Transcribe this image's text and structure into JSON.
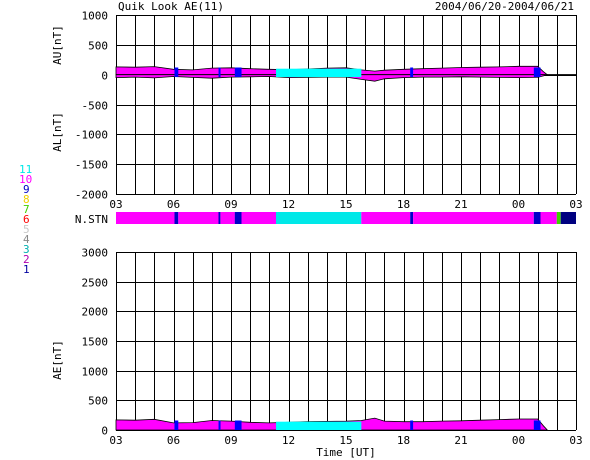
{
  "header": {
    "title": "Quik Look AE(11)",
    "period": "2004/06/20-2004/06/21"
  },
  "colors": {
    "magenta": "#ff00ff",
    "cyan": "#00ffff",
    "blue": "#0000ff",
    "navy": "#000080",
    "grid": "#000000"
  },
  "legend": [
    {
      "label": "11",
      "color": "#00e8e8"
    },
    {
      "label": "10",
      "color": "#ff00ff"
    },
    {
      "label": "9",
      "color": "#0000c8"
    },
    {
      "label": "8",
      "color": "#f0d000"
    },
    {
      "label": "7",
      "color": "#40d000"
    },
    {
      "label": "6",
      "color": "#ff0000"
    },
    {
      "label": "5",
      "color": "#c8c8c8"
    },
    {
      "label": "4",
      "color": "#888888"
    },
    {
      "label": "3",
      "color": "#00b0b0"
    },
    {
      "label": "2",
      "color": "#b000b0"
    },
    {
      "label": "1",
      "color": "#0000a0"
    }
  ],
  "nstn_label": "N.STN",
  "chart_data": [
    {
      "type": "area",
      "title": "",
      "ylabel_upper": "AU[nT]",
      "ylabel_lower": "AL[nT]",
      "ylim": [
        -2000,
        1000
      ],
      "yticks": [
        1000,
        500,
        0,
        -500,
        -1000,
        -1500,
        -2000
      ],
      "xlim": [
        3,
        27
      ],
      "xticks": [
        "03",
        "06",
        "09",
        "12",
        "15",
        "18",
        "21",
        "00",
        "03"
      ],
      "grid": true,
      "series": [
        {
          "values": [
            {
              "x": 3.0,
              "au": 130,
              "al": -50
            },
            {
              "x": 4.0,
              "au": 125,
              "al": -40
            },
            {
              "x": 5.0,
              "au": 135,
              "al": -55
            },
            {
              "x": 6.0,
              "au": 90,
              "al": -30
            },
            {
              "x": 7.0,
              "au": 80,
              "al": -45
            },
            {
              "x": 8.0,
              "au": 110,
              "al": -60
            },
            {
              "x": 9.0,
              "au": 115,
              "al": -40
            },
            {
              "x": 10.0,
              "au": 100,
              "al": -35
            },
            {
              "x": 11.0,
              "au": 90,
              "al": -30
            },
            {
              "x": 12.0,
              "au": 85,
              "al": -50
            },
            {
              "x": 13.0,
              "au": 95,
              "al": -45
            },
            {
              "x": 14.0,
              "au": 110,
              "al": -40
            },
            {
              "x": 15.0,
              "au": 115,
              "al": -40
            },
            {
              "x": 15.8,
              "au": 80,
              "al": -80
            },
            {
              "x": 16.5,
              "au": 60,
              "al": -110
            },
            {
              "x": 17.0,
              "au": 75,
              "al": -70
            },
            {
              "x": 18.0,
              "au": 90,
              "al": -50
            },
            {
              "x": 19.0,
              "au": 100,
              "al": -40
            },
            {
              "x": 20.0,
              "au": 110,
              "al": -40
            },
            {
              "x": 21.0,
              "au": 120,
              "al": -35
            },
            {
              "x": 22.0,
              "au": 125,
              "al": -40
            },
            {
              "x": 23.0,
              "au": 130,
              "al": -45
            },
            {
              "x": 24.0,
              "au": 140,
              "al": -50
            },
            {
              "x": 25.0,
              "au": 140,
              "al": -45
            },
            {
              "x": 25.3,
              "au": 50,
              "al": -20
            },
            {
              "x": 25.5,
              "au": 0,
              "al": 0
            }
          ]
        }
      ]
    },
    {
      "type": "bar",
      "label": "N.STN",
      "xlim": [
        3,
        27
      ],
      "segments": [
        {
          "start": 3.0,
          "end": 6.05,
          "value": 10
        },
        {
          "start": 6.05,
          "end": 6.25,
          "value": 9
        },
        {
          "start": 6.25,
          "end": 8.35,
          "value": 10
        },
        {
          "start": 8.35,
          "end": 8.45,
          "value": 9
        },
        {
          "start": 8.45,
          "end": 9.2,
          "value": 10
        },
        {
          "start": 9.2,
          "end": 9.55,
          "value": 9
        },
        {
          "start": 9.55,
          "end": 11.35,
          "value": 10
        },
        {
          "start": 11.35,
          "end": 15.8,
          "value": 11
        },
        {
          "start": 15.8,
          "end": 18.35,
          "value": 10
        },
        {
          "start": 18.35,
          "end": 18.5,
          "value": 9
        },
        {
          "start": 18.5,
          "end": 24.8,
          "value": 10
        },
        {
          "start": 24.8,
          "end": 25.15,
          "value": 9
        },
        {
          "start": 25.15,
          "end": 26.0,
          "value": 10
        },
        {
          "start": 26.0,
          "end": 26.2,
          "value": 7
        },
        {
          "start": 26.2,
          "end": 27.0,
          "value": 1
        }
      ]
    },
    {
      "type": "area",
      "title": "",
      "ylabel": "AE[nT]",
      "xlabel": "Time [UT]",
      "ylim": [
        0,
        3000
      ],
      "yticks": [
        3000,
        2500,
        2000,
        1500,
        1000,
        500,
        0
      ],
      "xlim": [
        3,
        27
      ],
      "xticks": [
        "03",
        "06",
        "09",
        "12",
        "15",
        "18",
        "21",
        "00",
        "03"
      ],
      "grid": true,
      "series": [
        {
          "values": [
            {
              "x": 3.0,
              "ae": 170
            },
            {
              "x": 4.0,
              "ae": 165
            },
            {
              "x": 5.0,
              "ae": 180
            },
            {
              "x": 6.0,
              "ae": 120
            },
            {
              "x": 7.0,
              "ae": 125
            },
            {
              "x": 8.0,
              "ae": 160
            },
            {
              "x": 9.0,
              "ae": 150
            },
            {
              "x": 10.0,
              "ae": 130
            },
            {
              "x": 11.0,
              "ae": 120
            },
            {
              "x": 12.0,
              "ae": 130
            },
            {
              "x": 13.0,
              "ae": 140
            },
            {
              "x": 14.0,
              "ae": 145
            },
            {
              "x": 15.0,
              "ae": 150
            },
            {
              "x": 15.8,
              "ae": 160
            },
            {
              "x": 16.5,
              "ae": 200
            },
            {
              "x": 17.0,
              "ae": 150
            },
            {
              "x": 18.0,
              "ae": 140
            },
            {
              "x": 19.0,
              "ae": 140
            },
            {
              "x": 20.0,
              "ae": 150
            },
            {
              "x": 21.0,
              "ae": 155
            },
            {
              "x": 22.0,
              "ae": 165
            },
            {
              "x": 23.0,
              "ae": 175
            },
            {
              "x": 24.0,
              "ae": 185
            },
            {
              "x": 25.0,
              "ae": 185
            },
            {
              "x": 25.3,
              "ae": 70
            },
            {
              "x": 25.5,
              "ae": 0
            }
          ]
        }
      ]
    }
  ]
}
